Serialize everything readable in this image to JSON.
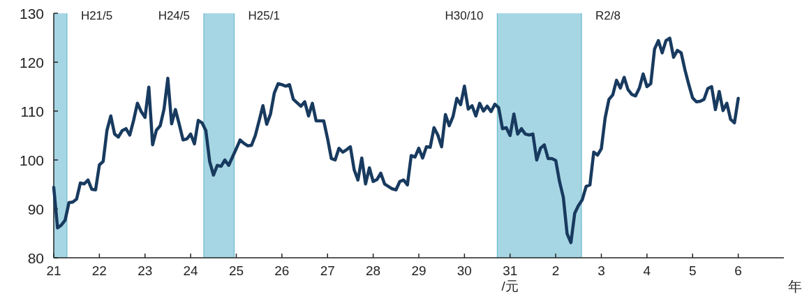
{
  "chart_data": {
    "type": "line",
    "xlabel": "年",
    "xlim": [
      "2009",
      "2025"
    ],
    "ylim": [
      80,
      130
    ],
    "xticks": [
      {
        "value": "2009",
        "label": "21"
      },
      {
        "value": "2010",
        "label": "22"
      },
      {
        "value": "2011",
        "label": "23"
      },
      {
        "value": "2012",
        "label": "24"
      },
      {
        "value": "2013",
        "label": "25"
      },
      {
        "value": "2014",
        "label": "26"
      },
      {
        "value": "2015",
        "label": "27"
      },
      {
        "value": "2016",
        "label": "28"
      },
      {
        "value": "2017",
        "label": "29"
      },
      {
        "value": "2018",
        "label": "30"
      },
      {
        "value": "2019",
        "label": "31\n/元"
      },
      {
        "value": "2020",
        "label": "2"
      },
      {
        "value": "2021",
        "label": "3"
      },
      {
        "value": "2022",
        "label": "4"
      },
      {
        "value": "2023",
        "label": "5"
      },
      {
        "value": "2024",
        "label": "6"
      }
    ],
    "yticks": [
      80,
      90,
      100,
      110,
      120,
      130
    ],
    "grid": false,
    "marker": "none",
    "line_style": "solid",
    "bands": [
      {
        "axis": "x",
        "from": "2009-01",
        "to": "2009-04-15",
        "color": "#a6d6e3"
      },
      {
        "axis": "x",
        "from": "2012-04-15",
        "to": "2012-12-15",
        "color": "#a6d6e3"
      },
      {
        "axis": "x",
        "from": "2018-09-20",
        "to": "2020-07-25",
        "color": "#a6d6e3"
      }
    ],
    "ref_lines": [
      {
        "axis": "x",
        "value": "2009-04-15",
        "label": "H21/5",
        "color": "#6cbacd",
        "line_style": "solid"
      },
      {
        "axis": "x",
        "value": "2012-04-15",
        "label": "H24/5",
        "color": "#6cbacd",
        "line_style": "solid"
      },
      {
        "axis": "x",
        "value": "2012-12-15",
        "label": "H25/1",
        "color": "#6cbacd",
        "line_style": "solid"
      },
      {
        "axis": "x",
        "value": "2018-09-20",
        "label": "H30/10",
        "color": "#6cbacd",
        "line_style": "solid"
      },
      {
        "axis": "x",
        "value": "2020-07-25",
        "label": "R2/8",
        "color": "#6cbacd",
        "line_style": "solid"
      }
    ],
    "series": [
      {
        "color": "#183a5f",
        "x": [
          "2009-01",
          "2009-02",
          "2009-03",
          "2009-04",
          "2009-05",
          "2009-06",
          "2009-07",
          "2009-08",
          "2009-09",
          "2009-10",
          "2009-11",
          "2009-12",
          "2010-01",
          "2010-02",
          "2010-03",
          "2010-04",
          "2010-05",
          "2010-06",
          "2010-07",
          "2010-08",
          "2010-09",
          "2010-10",
          "2010-11",
          "2010-12",
          "2011-01",
          "2011-02",
          "2011-03",
          "2011-04",
          "2011-05",
          "2011-06",
          "2011-07",
          "2011-08",
          "2011-09",
          "2011-10",
          "2011-11",
          "2011-12",
          "2012-01",
          "2012-02",
          "2012-03",
          "2012-04",
          "2012-05",
          "2012-06",
          "2012-07",
          "2012-08",
          "2012-09",
          "2012-10",
          "2012-11",
          "2012-12",
          "2013-01",
          "2013-02",
          "2013-03",
          "2013-04",
          "2013-05",
          "2013-06",
          "2013-07",
          "2013-08",
          "2013-09",
          "2013-10",
          "2013-11",
          "2013-12",
          "2014-01",
          "2014-02",
          "2014-03",
          "2014-04",
          "2014-05",
          "2014-06",
          "2014-07",
          "2014-08",
          "2014-09",
          "2014-10",
          "2014-11",
          "2014-12",
          "2015-01",
          "2015-02",
          "2015-03",
          "2015-04",
          "2015-05",
          "2015-06",
          "2015-07",
          "2015-08",
          "2015-09",
          "2015-10",
          "2015-11",
          "2015-12",
          "2016-01",
          "2016-02",
          "2016-03",
          "2016-04",
          "2016-05",
          "2016-06",
          "2016-07",
          "2016-08",
          "2016-09",
          "2016-10",
          "2016-11",
          "2016-12",
          "2017-01",
          "2017-02",
          "2017-03",
          "2017-04",
          "2017-05",
          "2017-06",
          "2017-07",
          "2017-08",
          "2017-09",
          "2017-10",
          "2017-11",
          "2017-12",
          "2018-01",
          "2018-02",
          "2018-03",
          "2018-04",
          "2018-05",
          "2018-06",
          "2018-07",
          "2018-08",
          "2018-09",
          "2018-10",
          "2018-11",
          "2018-12",
          "2019-01",
          "2019-02",
          "2019-03",
          "2019-04",
          "2019-05",
          "2019-06",
          "2019-07",
          "2019-08",
          "2019-09",
          "2019-10",
          "2019-11",
          "2019-12",
          "2020-01",
          "2020-02",
          "2020-03",
          "2020-04",
          "2020-05",
          "2020-06",
          "2020-07",
          "2020-08",
          "2020-09",
          "2020-10",
          "2020-11",
          "2020-12",
          "2021-01",
          "2021-02",
          "2021-03",
          "2021-04",
          "2021-05",
          "2021-06",
          "2021-07",
          "2021-08",
          "2021-09",
          "2021-10",
          "2021-11",
          "2021-12",
          "2022-01",
          "2022-02",
          "2022-03",
          "2022-04",
          "2022-05",
          "2022-06",
          "2022-07",
          "2022-08",
          "2022-09",
          "2022-10",
          "2022-11",
          "2022-12",
          "2023-01",
          "2023-02",
          "2023-03",
          "2023-04",
          "2023-05",
          "2023-06",
          "2023-07",
          "2023-08",
          "2023-09",
          "2023-10",
          "2023-11",
          "2023-12",
          "2024-01"
        ],
        "values": [
          94.4,
          86.1,
          86.7,
          87.7,
          91.3,
          91.4,
          92.0,
          95.3,
          95.1,
          95.9,
          94.0,
          93.9,
          99.0,
          99.7,
          106.1,
          109.0,
          105.3,
          104.7,
          106.0,
          106.4,
          105.1,
          108.1,
          111.6,
          109.9,
          108.7,
          114.9,
          103.1,
          106.1,
          107.0,
          110.4,
          116.7,
          107.4,
          110.3,
          107.3,
          104.1,
          104.3,
          105.3,
          103.3,
          108.1,
          107.6,
          106.0,
          99.7,
          96.9,
          98.9,
          98.7,
          100.0,
          98.9,
          100.6,
          102.3,
          104.1,
          103.4,
          102.9,
          103.0,
          105.0,
          108.0,
          111.1,
          107.3,
          109.4,
          113.7,
          115.6,
          115.4,
          115.1,
          115.4,
          112.4,
          111.7,
          111.0,
          111.9,
          109.0,
          111.6,
          108.0,
          108.0,
          108.0,
          104.4,
          100.3,
          100.0,
          102.4,
          101.6,
          102.1,
          102.7,
          98.0,
          95.9,
          100.4,
          95.1,
          98.4,
          95.6,
          96.0,
          97.3,
          95.1,
          94.6,
          94.1,
          93.9,
          95.6,
          95.9,
          94.9,
          100.9,
          100.6,
          102.4,
          100.4,
          102.7,
          102.6,
          106.6,
          105.1,
          102.7,
          109.3,
          107.0,
          108.9,
          112.6,
          111.3,
          115.1,
          110.4,
          111.1,
          109.0,
          111.6,
          110.0,
          111.0,
          109.9,
          111.4,
          110.7,
          106.4,
          106.6,
          105.0,
          109.4,
          105.3,
          106.4,
          105.3,
          105.1,
          105.3,
          100.0,
          102.4,
          103.1,
          100.3,
          100.3,
          99.9,
          95.6,
          92.4,
          84.9,
          83.1,
          89.1,
          90.7,
          91.9,
          94.6,
          94.9,
          101.6,
          101.0,
          102.3,
          108.6,
          112.4,
          113.3,
          116.3,
          114.7,
          116.9,
          114.4,
          113.4,
          113.1,
          114.7,
          117.6,
          115.0,
          115.6,
          122.7,
          124.4,
          121.9,
          124.4,
          124.9,
          121.0,
          122.4,
          121.9,
          118.4,
          115.4,
          112.7,
          111.9,
          112.0,
          112.4,
          114.6,
          115.0,
          110.3,
          114.0,
          110.1,
          111.6,
          108.3,
          107.6,
          112.6
        ]
      }
    ]
  }
}
